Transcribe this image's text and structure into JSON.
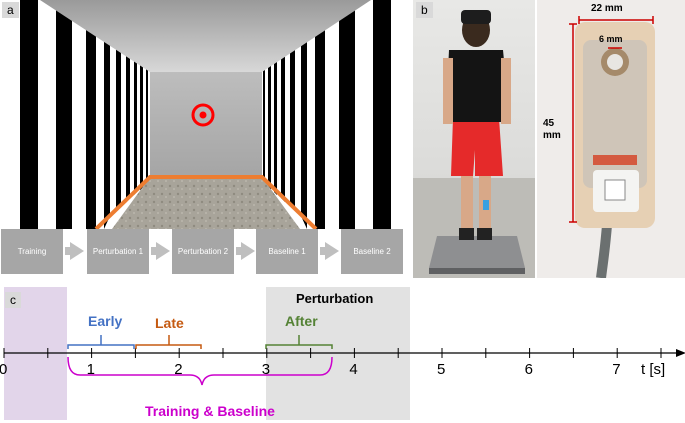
{
  "panels": {
    "a": "a",
    "b": "b",
    "c": "c"
  },
  "phases": [
    "Training",
    "Perturbation 1",
    "Perturbation 2",
    "Baseline 1",
    "Baseline 2"
  ],
  "photo": {
    "width_label": "22 mm",
    "inner_label": "6 mm",
    "height_label": "45",
    "height_unit": "mm"
  },
  "timeline": {
    "axis_unit": "t [s]",
    "ticks": [
      "0",
      "1",
      "2",
      "3",
      "4",
      "5",
      "6",
      "7"
    ],
    "window_early": "Early",
    "window_late": "Late",
    "window_after": "After",
    "perturbation_label": "Perturbation",
    "brace_label": "Training & Baseline"
  },
  "colors": {
    "early": "#4472c4",
    "late": "#c55a11",
    "after": "#548235",
    "brace": "#cc00cc",
    "purple_region": "#e2d5ea",
    "grey_region": "#e2e2e2",
    "target": "#ff0000",
    "floor_edge": "#ed7d31"
  }
}
